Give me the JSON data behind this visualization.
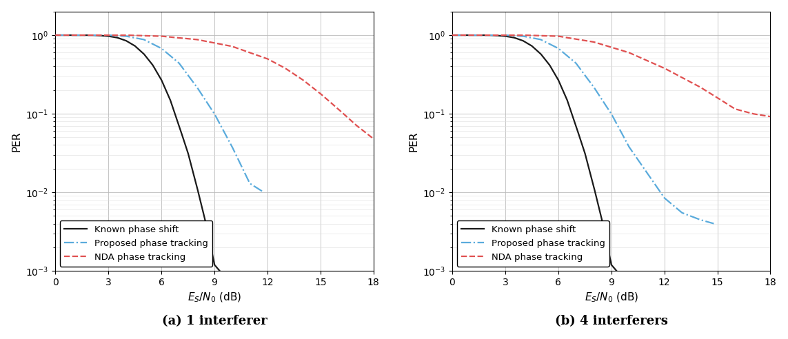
{
  "xlim": [
    0,
    18
  ],
  "ylim": [
    0.001,
    2.0
  ],
  "xticks": [
    0,
    3,
    6,
    9,
    12,
    15,
    18
  ],
  "xlabel": "E_S/N_0 (dB)",
  "ylabel": "PER",
  "subplot_a_title": "(a) 1 interferer",
  "subplot_b_title": "(b) 4 interferers",
  "background_color": "#ffffff",
  "known_color": "#1a1a1a",
  "proposed_color": "#5aabdc",
  "nda_color": "#e05050",
  "legend_labels": [
    "Known phase shift",
    "Proposed phase tracking",
    "NDA phase tracking"
  ],
  "panel_a": {
    "known_x": [
      0,
      1,
      2,
      2.5,
      3,
      3.5,
      4,
      4.5,
      5,
      5.5,
      6,
      6.5,
      7,
      7.5,
      8,
      8.5,
      9,
      9.3
    ],
    "known_y": [
      1.0,
      1.0,
      1.0,
      0.99,
      0.97,
      0.93,
      0.85,
      0.73,
      0.58,
      0.42,
      0.27,
      0.15,
      0.07,
      0.032,
      0.012,
      0.0042,
      0.0012,
      0.001
    ],
    "proposed_x": [
      0,
      1,
      2,
      3,
      4,
      5,
      6,
      7,
      8,
      9,
      10,
      11,
      11.8
    ],
    "proposed_y": [
      1.0,
      1.0,
      1.0,
      1.0,
      0.97,
      0.88,
      0.68,
      0.44,
      0.22,
      0.1,
      0.038,
      0.013,
      0.01
    ],
    "nda_x": [
      0,
      2,
      4,
      6,
      8,
      10,
      12,
      13,
      14,
      15,
      16,
      17,
      18
    ],
    "nda_y": [
      1.0,
      1.0,
      1.0,
      0.97,
      0.88,
      0.72,
      0.5,
      0.38,
      0.27,
      0.18,
      0.115,
      0.072,
      0.048
    ]
  },
  "panel_b": {
    "known_x": [
      0,
      1,
      2,
      2.5,
      3,
      3.5,
      4,
      4.5,
      5,
      5.5,
      6,
      6.5,
      7,
      7.5,
      8,
      8.5,
      9,
      9.3
    ],
    "known_y": [
      1.0,
      1.0,
      1.0,
      0.99,
      0.97,
      0.93,
      0.85,
      0.73,
      0.58,
      0.42,
      0.27,
      0.15,
      0.07,
      0.032,
      0.012,
      0.0042,
      0.0012,
      0.001
    ],
    "proposed_x": [
      0,
      1,
      2,
      3,
      4,
      5,
      6,
      7,
      8,
      9,
      10,
      11,
      12,
      13,
      14,
      14.8
    ],
    "proposed_y": [
      1.0,
      1.0,
      1.0,
      1.0,
      0.97,
      0.88,
      0.68,
      0.44,
      0.22,
      0.1,
      0.038,
      0.018,
      0.0085,
      0.0055,
      0.0045,
      0.004
    ],
    "nda_x": [
      0,
      2,
      4,
      6,
      8,
      10,
      12,
      14,
      15,
      16,
      17,
      18
    ],
    "nda_y": [
      1.0,
      1.0,
      1.0,
      0.97,
      0.82,
      0.6,
      0.38,
      0.22,
      0.16,
      0.115,
      0.1,
      0.092
    ]
  }
}
